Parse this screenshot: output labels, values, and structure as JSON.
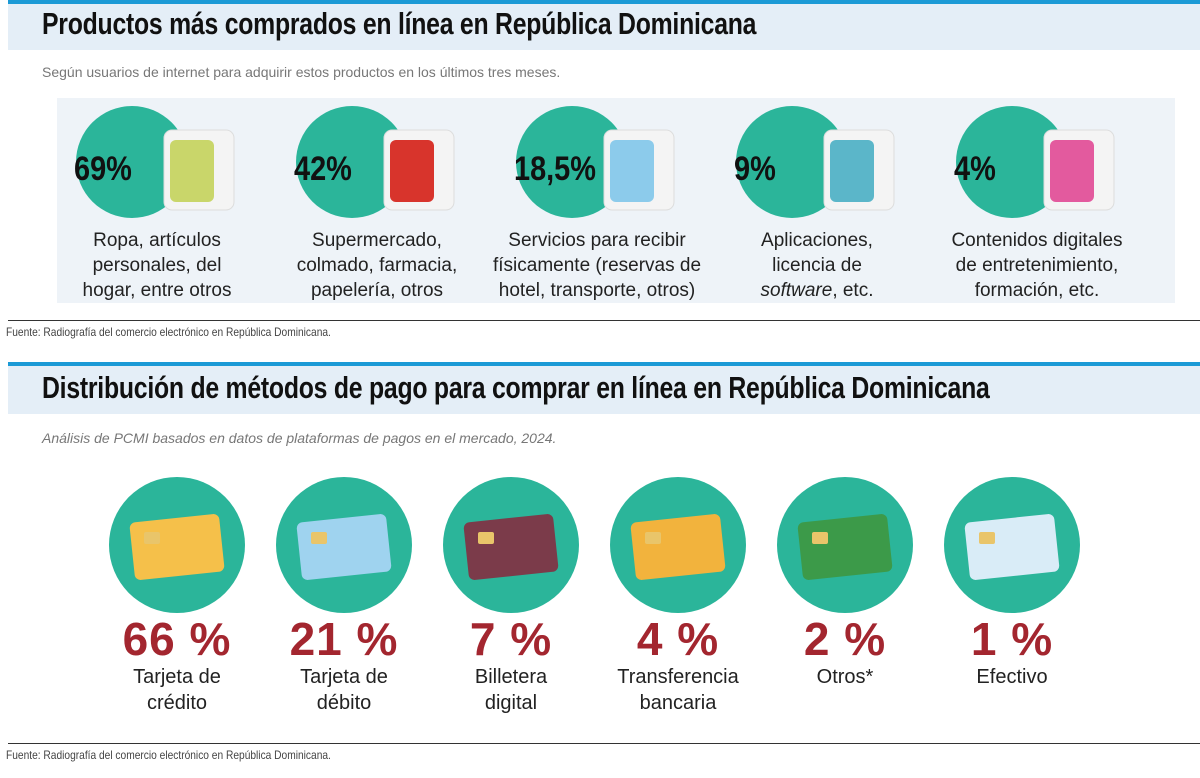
{
  "section1": {
    "title": "Productos más comprados en línea en República Dominicana",
    "subtitle": "Según usuarios de internet para adquirir estos productos en los últimos tres meses.",
    "items": [
      {
        "value": "69%",
        "lines": [
          "Ropa, artículos",
          "personales, del",
          "hogar, entre otros"
        ]
      },
      {
        "value": "42%",
        "lines": [
          "Supermercado,",
          "colmado, farmacia,",
          "papelería, otros"
        ]
      },
      {
        "value": "18,5%",
        "lines": [
          "Servicios para recibir",
          "físicamente (reservas de",
          "hotel, transporte, otros)"
        ]
      },
      {
        "value": "9%",
        "lines": [
          "Aplicaciones,",
          "licencia de",
          [
            {
              "text": "software",
              "italic": true
            },
            {
              "text": ", etc."
            }
          ]
        ]
      },
      {
        "value": "4%",
        "lines": [
          "Contenidos digitales",
          "de entretenimiento,",
          "formación, etc."
        ]
      }
    ],
    "source": "Fuente: Radiografía del comercio electrónico en República Dominicana."
  },
  "section2": {
    "title": "Distribución de métodos de pago para comprar en línea en República Dominicana",
    "subtitle": "Análisis de PCMI basados en datos de plataformas de pagos en el mercado, 2024.",
    "items": [
      {
        "value": "66 %",
        "lines": [
          "Tarjeta de",
          "crédito"
        ]
      },
      {
        "value": "21 %",
        "lines": [
          "Tarjeta de",
          "débito"
        ]
      },
      {
        "value": "7 %",
        "lines": [
          "Billetera",
          "digital"
        ]
      },
      {
        "value": "4 %",
        "lines": [
          "Transferencia",
          "bancaria"
        ]
      },
      {
        "value": "2 %",
        "lines": [
          "Otros*"
        ]
      },
      {
        "value": "1 %",
        "lines": [
          "Efectivo"
        ]
      }
    ],
    "source": "Fuente: Radiografía del comercio electrónico en República Dominicana."
  }
}
